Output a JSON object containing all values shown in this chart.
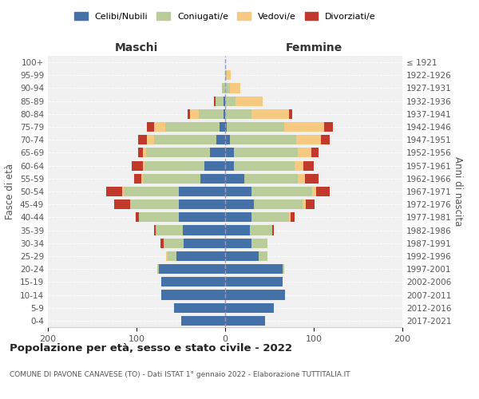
{
  "age_groups": [
    "0-4",
    "5-9",
    "10-14",
    "15-19",
    "20-24",
    "25-29",
    "30-34",
    "35-39",
    "40-44",
    "45-49",
    "50-54",
    "55-59",
    "60-64",
    "65-69",
    "70-74",
    "75-79",
    "80-84",
    "85-89",
    "90-94",
    "95-99",
    "100+"
  ],
  "birth_years": [
    "2017-2021",
    "2012-2016",
    "2007-2011",
    "2002-2006",
    "1997-2001",
    "1992-1996",
    "1987-1991",
    "1982-1986",
    "1977-1981",
    "1972-1976",
    "1967-1971",
    "1962-1966",
    "1957-1961",
    "1952-1956",
    "1947-1951",
    "1942-1946",
    "1937-1941",
    "1932-1936",
    "1927-1931",
    "1922-1926",
    "≤ 1921"
  ],
  "maschi": {
    "celibi": [
      50,
      58,
      72,
      72,
      75,
      55,
      47,
      48,
      52,
      52,
      52,
      28,
      23,
      17,
      10,
      6,
      2,
      2,
      0,
      0,
      0
    ],
    "coniugati": [
      0,
      0,
      0,
      0,
      2,
      10,
      22,
      30,
      45,
      55,
      62,
      65,
      68,
      72,
      70,
      62,
      28,
      9,
      4,
      0,
      0
    ],
    "vedovi": [
      0,
      0,
      0,
      0,
      0,
      2,
      0,
      0,
      0,
      0,
      2,
      2,
      2,
      4,
      8,
      12,
      10,
      0,
      0,
      0,
      0
    ],
    "divorziati": [
      0,
      0,
      0,
      0,
      0,
      0,
      4,
      2,
      4,
      18,
      18,
      8,
      12,
      5,
      10,
      8,
      2,
      2,
      0,
      0,
      0
    ]
  },
  "femmine": {
    "nubili": [
      45,
      55,
      68,
      65,
      65,
      38,
      30,
      28,
      30,
      32,
      30,
      22,
      10,
      10,
      5,
      2,
      0,
      0,
      0,
      0,
      0
    ],
    "coniugate": [
      0,
      0,
      0,
      0,
      2,
      10,
      18,
      25,
      42,
      55,
      68,
      60,
      68,
      72,
      75,
      65,
      30,
      12,
      5,
      2,
      0
    ],
    "vedove": [
      0,
      0,
      0,
      0,
      0,
      0,
      0,
      0,
      2,
      4,
      5,
      8,
      10,
      15,
      28,
      45,
      42,
      30,
      12,
      4,
      0
    ],
    "divorziate": [
      0,
      0,
      0,
      0,
      0,
      0,
      0,
      2,
      4,
      10,
      15,
      15,
      12,
      8,
      10,
      10,
      4,
      0,
      0,
      0,
      0
    ]
  },
  "colors": {
    "celibi": "#4472a8",
    "coniugati": "#b9cc99",
    "vedovi": "#f5c97f",
    "divorziati": "#c0392b"
  },
  "xlim": 200,
  "title": "Popolazione per età, sesso e stato civile - 2022",
  "subtitle": "COMUNE DI PAVONE CANAVESE (TO) - Dati ISTAT 1° gennaio 2022 - Elaborazione TUTTITALIA.IT",
  "ylabel_left": "Fasce di età",
  "ylabel_right": "Anni di nascita",
  "xlabel_maschi": "Maschi",
  "xlabel_femmine": "Femmine",
  "legend_labels": [
    "Celibi/Nubili",
    "Coniugati/e",
    "Vedovi/e",
    "Divorziati/e"
  ],
  "bg_color": "#f0f0f0",
  "bar_height": 0.75
}
